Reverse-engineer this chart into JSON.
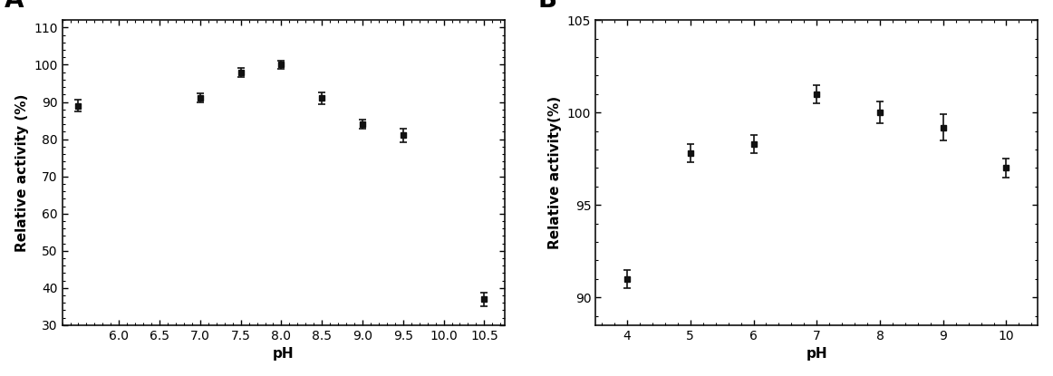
{
  "A": {
    "x": [
      5.5,
      7.0,
      7.5,
      8.0,
      8.5,
      9.0,
      9.5,
      10.5
    ],
    "y": [
      89,
      91,
      98,
      100,
      91,
      84,
      81,
      37
    ],
    "yerr": [
      1.5,
      1.2,
      1.2,
      1.0,
      1.5,
      1.2,
      1.8,
      1.8
    ],
    "xlabel": "pH",
    "ylabel": "Relative activity (%)",
    "label": "A",
    "xlim": [
      5.3,
      10.75
    ],
    "ylim": [
      30,
      112
    ],
    "xticks": [
      6.0,
      6.5,
      7.0,
      7.5,
      8.0,
      8.5,
      9.0,
      9.5,
      10.0,
      10.5
    ],
    "xtick_labels": [
      "6.0",
      "6.5",
      "7.0",
      "7.5",
      "8.0",
      "8.5",
      "9.0",
      "9.5",
      "10.0",
      "10.5"
    ],
    "yticks": [
      30,
      40,
      50,
      60,
      70,
      80,
      90,
      100,
      110
    ]
  },
  "B": {
    "x": [
      4,
      5,
      6,
      7,
      8,
      9,
      10
    ],
    "y": [
      91.0,
      97.8,
      98.3,
      101.0,
      100.0,
      99.2,
      97.0
    ],
    "yerr": [
      0.5,
      0.5,
      0.5,
      0.5,
      0.6,
      0.7,
      0.5
    ],
    "xlabel": "pH",
    "ylabel": "Relative activity(%)",
    "label": "B",
    "xlim": [
      3.5,
      10.5
    ],
    "ylim": [
      88.5,
      105
    ],
    "xticks": [
      4,
      5,
      6,
      7,
      8,
      9,
      10
    ],
    "xtick_labels": [
      "4",
      "5",
      "6",
      "7",
      "8",
      "9",
      "10"
    ],
    "yticks": [
      90,
      95,
      100,
      105
    ]
  },
  "line_color": "#111111",
  "marker": "s",
  "marker_color": "#111111",
  "marker_size": 5,
  "line_width": 1.5,
  "label_fontsize": 11,
  "tick_fontsize": 10,
  "panel_label_fontsize": 20,
  "fig_bg": "#ffffff"
}
